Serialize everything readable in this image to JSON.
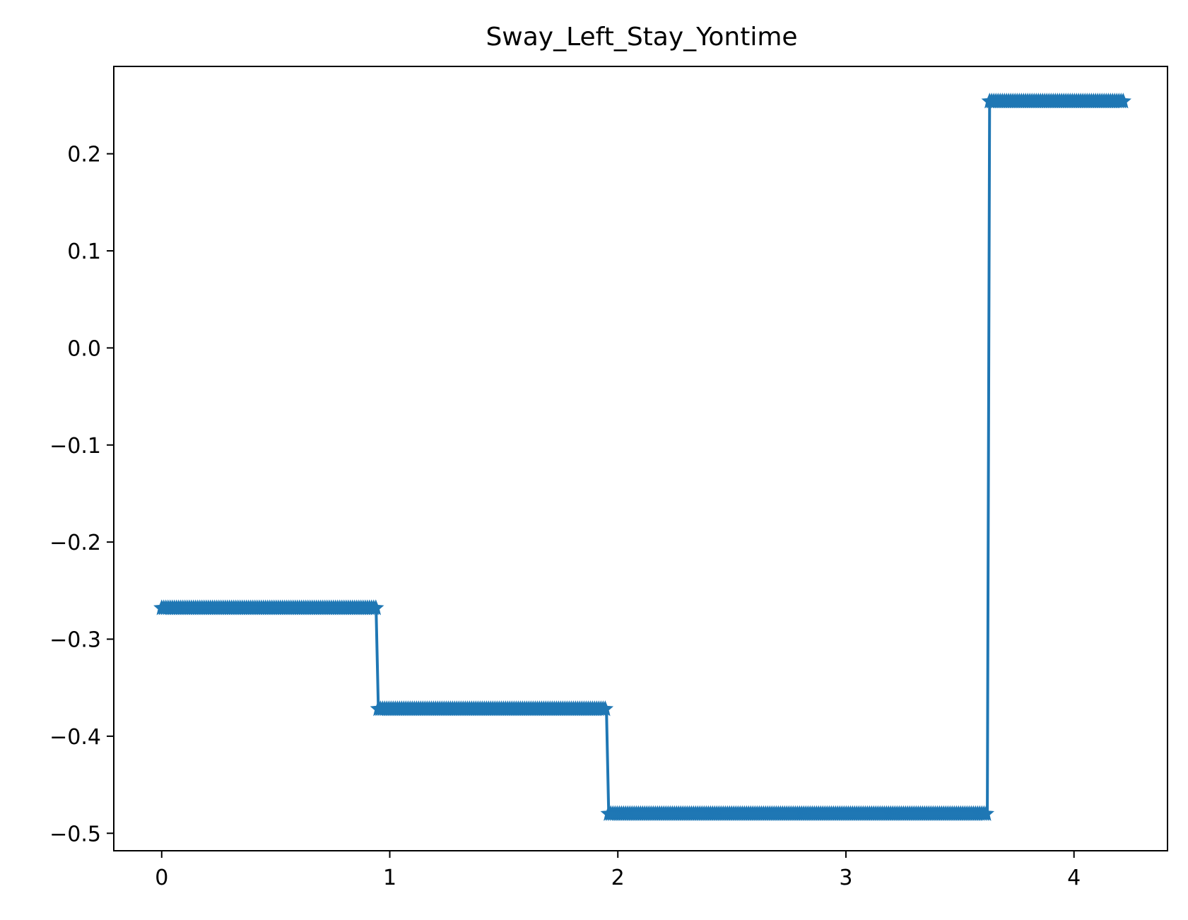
{
  "chart_data": {
    "type": "line",
    "title": "Sway_Left_Stay_Yontime",
    "xlabel": "",
    "ylabel": "",
    "xlim": [
      -0.21,
      4.41
    ],
    "ylim": [
      -0.518,
      0.29
    ],
    "xticks": [
      0,
      1,
      2,
      3,
      4
    ],
    "xtick_labels": [
      "0",
      "1",
      "2",
      "3",
      "4"
    ],
    "yticks": [
      0.2,
      0.1,
      0.0,
      -0.1,
      -0.2,
      -0.3,
      -0.4,
      -0.5
    ],
    "ytick_labels": [
      "0.2",
      "0.1",
      "0.0",
      "−0.1",
      "−0.2",
      "−0.3",
      "−0.4",
      "−0.5"
    ],
    "grid": false,
    "series": [
      {
        "color": "#1f77b4",
        "marker": "star",
        "segments": [
          {
            "x_start": 0.0,
            "x_end": 0.94,
            "y": -0.268
          },
          {
            "x_start": 0.95,
            "x_end": 1.95,
            "y": -0.372
          },
          {
            "x_start": 1.96,
            "x_end": 3.62,
            "y": -0.48
          },
          {
            "x_start": 3.63,
            "x_end": 4.22,
            "y": 0.254
          }
        ]
      }
    ]
  }
}
